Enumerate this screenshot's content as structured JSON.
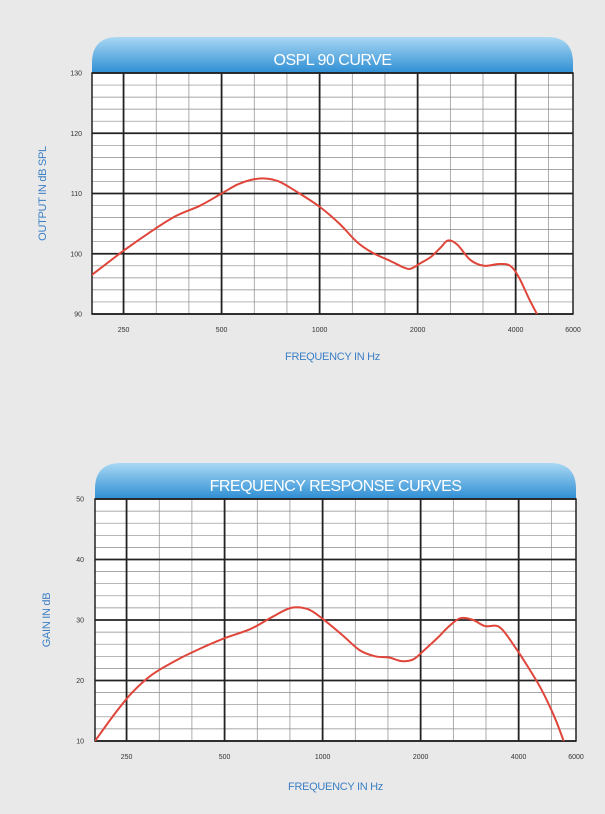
{
  "colors": {
    "banner_top": "#a9d8f4",
    "banner_bottom": "#2e8ed4",
    "curve": "#e0453a",
    "grid_major": "#222222",
    "grid_minor": "#8a8a8a",
    "axis_title": "#3b7fc4",
    "page_bg": "#e9e9ea",
    "plot_bg": "#ffffff"
  },
  "chart_data": [
    {
      "type": "line",
      "title": "OSPL 90 CURVE",
      "xlabel": "FREQUENCY IN Hz",
      "ylabel": "OUTPUT IN dB SPL",
      "x_scale": "log",
      "xlim": [
        200,
        6000
      ],
      "ylim": [
        90,
        130
      ],
      "x_ticks": [
        250,
        500,
        1000,
        2000,
        4000,
        6000
      ],
      "x_tick_labels": [
        "250",
        "500",
        "1000",
        "2000",
        "4000",
        "6000"
      ],
      "y_ticks": [
        90,
        100,
        110,
        120,
        130
      ],
      "y_tick_labels": [
        "90",
        "100",
        "110",
        "120",
        "130"
      ],
      "grid": true,
      "series": [
        {
          "x": [
            200,
            250,
            300,
            360,
            430,
            500,
            560,
            620,
            680,
            750,
            850,
            1000,
            1150,
            1300,
            1450,
            1650,
            1800,
            1900,
            2050,
            2200,
            2350,
            2480,
            2650,
            2900,
            3200,
            3550,
            3850,
            4100,
            4400,
            4650
          ],
          "y": [
            96.5,
            100.5,
            103.5,
            106.2,
            108.0,
            110.0,
            111.5,
            112.3,
            112.5,
            112.0,
            110.3,
            107.8,
            105.0,
            102.0,
            100.2,
            98.8,
            97.8,
            97.5,
            98.5,
            99.5,
            101.0,
            102.2,
            101.5,
            99.0,
            98.0,
            98.3,
            98.0,
            96.0,
            92.5,
            90.0
          ]
        }
      ]
    },
    {
      "type": "line",
      "title": "FREQUENCY RESPONSE CURVES",
      "xlabel": "FREQUENCY IN Hz",
      "ylabel": "GAIN IN dB",
      "x_scale": "log",
      "xlim": [
        200,
        6000
      ],
      "ylim": [
        10,
        50
      ],
      "x_ticks": [
        250,
        500,
        1000,
        2000,
        4000,
        6000
      ],
      "x_tick_labels": [
        "250",
        "500",
        "1000",
        "2000",
        "4000",
        "6000"
      ],
      "y_ticks": [
        10,
        20,
        30,
        40,
        50
      ],
      "y_tick_labels": [
        "10",
        "20",
        "30",
        "40",
        "50"
      ],
      "grid": true,
      "series": [
        {
          "x": [
            200,
            230,
            260,
            300,
            360,
            430,
            500,
            600,
            700,
            800,
            900,
            1000,
            1150,
            1300,
            1450,
            1600,
            1750,
            1900,
            2050,
            2250,
            2450,
            2650,
            2900,
            3150,
            3500,
            3900,
            4300,
            4700,
            5150,
            5500
          ],
          "y": [
            10.0,
            14.5,
            18.0,
            21.0,
            23.5,
            25.5,
            27.0,
            28.5,
            30.5,
            32.0,
            31.8,
            30.2,
            27.5,
            25.0,
            24.0,
            23.8,
            23.2,
            23.5,
            25.0,
            27.0,
            29.0,
            30.3,
            30.0,
            29.0,
            28.8,
            25.5,
            22.0,
            18.5,
            14.0,
            10.0
          ]
        }
      ]
    }
  ]
}
